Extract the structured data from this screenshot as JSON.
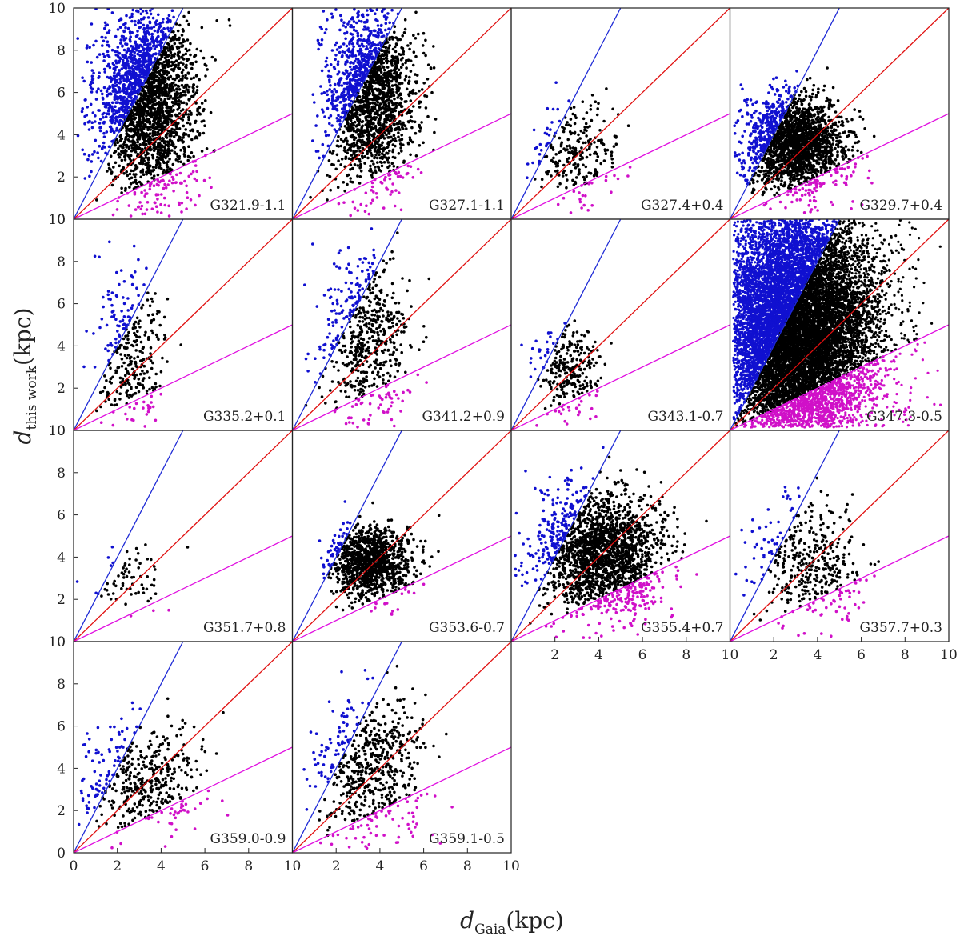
{
  "figure": {
    "xlabel": {
      "main": "d",
      "sub": "Gaia",
      "unit": "(kpc)"
    },
    "ylabel": {
      "main": "d",
      "sub": "this work",
      "unit": "(kpc)"
    }
  },
  "colors": {
    "near_points": "#1010d0",
    "mid_points": "#000000",
    "far_points": "#d010c8",
    "upper_line": "#1f2bd6",
    "one_to_one_line": "#e01010",
    "lower_line": "#e010e0",
    "frame": "#222222"
  },
  "chart_data": {
    "type": "scatter",
    "layout": "4x4 grid of panels sharing axes (14 panels)",
    "xlim": [
      0,
      10
    ],
    "ylim": [
      0,
      10
    ],
    "x_ticks": [
      "2",
      "4",
      "6",
      "8",
      "10"
    ],
    "y_ticks": [
      "0",
      "2",
      "4",
      "6",
      "8",
      "10"
    ],
    "x_ticks_first_column": [
      "0",
      "2",
      "4",
      "6",
      "8",
      "10"
    ],
    "reference_lines": [
      {
        "slope": 2.0,
        "color": "upper_line"
      },
      {
        "slope": 1.0,
        "color": "one_to_one_line"
      },
      {
        "slope": 0.5,
        "color": "lower_line"
      }
    ],
    "panels": [
      {
        "label": "G321.9-1.1",
        "n_points": 2400,
        "center": [
          3.4,
          5.6
        ],
        "spread": [
          1.1,
          2.2
        ]
      },
      {
        "label": "G327.1-1.1",
        "n_points": 1800,
        "center": [
          3.6,
          5.8
        ],
        "spread": [
          1.0,
          2.1
        ]
      },
      {
        "label": "G327.4+0.4",
        "n_points": 260,
        "center": [
          3.0,
          3.1
        ],
        "spread": [
          0.9,
          1.2
        ]
      },
      {
        "label": "G329.7+0.4",
        "n_points": 2000,
        "center": [
          3.0,
          3.6
        ],
        "spread": [
          1.1,
          1.1
        ]
      },
      {
        "label": "G335.2+0.1",
        "n_points": 320,
        "center": [
          2.6,
          3.6
        ],
        "spread": [
          0.8,
          1.8
        ]
      },
      {
        "label": "G341.2+0.9",
        "n_points": 600,
        "center": [
          3.4,
          4.2
        ],
        "spread": [
          1.0,
          2.0
        ]
      },
      {
        "label": "G343.1-0.7",
        "n_points": 280,
        "center": [
          2.6,
          2.8
        ],
        "spread": [
          0.7,
          1.0
        ]
      },
      {
        "label": "G347.3-0.5",
        "n_points": 12000,
        "center": [
          3.0,
          4.8
        ],
        "spread": [
          1.8,
          3.0
        ]
      },
      {
        "label": "G351.7+0.8",
        "n_points": 70,
        "center": [
          2.7,
          3.0
        ],
        "spread": [
          0.8,
          0.9
        ]
      },
      {
        "label": "G353.6-0.7",
        "n_points": 1200,
        "center": [
          3.6,
          3.7
        ],
        "spread": [
          0.9,
          0.8
        ]
      },
      {
        "label": "G355.4+0.7",
        "n_points": 2000,
        "center": [
          4.2,
          4.2
        ],
        "spread": [
          1.4,
          1.4
        ]
      },
      {
        "label": "G357.7+0.3",
        "n_points": 420,
        "center": [
          3.6,
          3.6
        ],
        "spread": [
          1.2,
          1.4
        ]
      },
      {
        "label": "G359.0-0.9",
        "n_points": 450,
        "center": [
          3.2,
          3.4
        ],
        "spread": [
          1.4,
          1.3
        ]
      },
      {
        "label": "G359.1-0.5",
        "n_points": 600,
        "center": [
          3.6,
          4.0
        ],
        "spread": [
          1.2,
          1.8
        ]
      }
    ]
  }
}
